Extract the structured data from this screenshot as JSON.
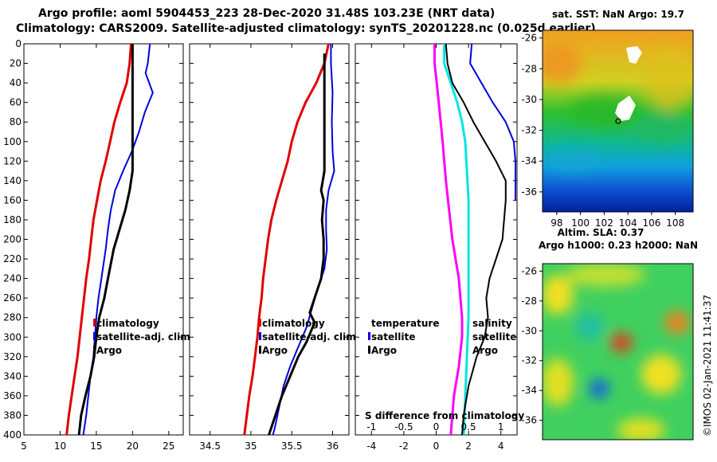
{
  "header": {
    "line1": "Argo profile: aoml 5904453_223 28-Dec-2020 31.48S 103.23E (NRT data)",
    "line2": "Climatology: CARS2009. Satellite-adjusted climatology: synTS_20201228.nc (0.025d earlier)"
  },
  "colors": {
    "climatology": "#e00000",
    "satellite": "#0000dd",
    "argo": "#000000",
    "temperature": "#ff00ff",
    "salinity": "#00e5e5"
  },
  "depth_ticks": [
    0,
    20,
    40,
    60,
    80,
    100,
    120,
    140,
    160,
    180,
    200,
    220,
    240,
    260,
    280,
    300,
    320,
    340,
    360,
    380,
    400
  ],
  "chart_data": [
    {
      "type": "line",
      "panel": "temperature",
      "xlim": [
        5,
        27
      ],
      "ylim": [
        400,
        0
      ],
      "xticks": [
        5,
        10,
        15,
        20,
        25
      ],
      "yaxis_label_visible": true,
      "legend": [
        "climatology",
        "satellite-adj. clim.",
        "Argo"
      ],
      "series": [
        {
          "name": "climatology",
          "color": "#e00000",
          "width": 3,
          "points": [
            [
              19.8,
              0
            ],
            [
              19.6,
              20
            ],
            [
              19.2,
              40
            ],
            [
              18.3,
              60
            ],
            [
              17.5,
              80
            ],
            [
              16.9,
              100
            ],
            [
              16.3,
              120
            ],
            [
              15.6,
              140
            ],
            [
              15.1,
              160
            ],
            [
              14.6,
              180
            ],
            [
              14.3,
              200
            ],
            [
              14.0,
              220
            ],
            [
              13.6,
              240
            ],
            [
              13.3,
              260
            ],
            [
              13.0,
              280
            ],
            [
              12.7,
              300
            ],
            [
              12.4,
              320
            ],
            [
              12.0,
              340
            ],
            [
              11.6,
              360
            ],
            [
              11.2,
              380
            ],
            [
              10.9,
              400
            ]
          ]
        },
        {
          "name": "satellite-adj. clim.",
          "color": "#0000dd",
          "width": 2,
          "points": [
            [
              22.4,
              0
            ],
            [
              22.1,
              20
            ],
            [
              21.8,
              30
            ],
            [
              22.8,
              50
            ],
            [
              21.7,
              70
            ],
            [
              20.9,
              90
            ],
            [
              19.9,
              110
            ],
            [
              18.7,
              130
            ],
            [
              17.6,
              150
            ],
            [
              17.0,
              170
            ],
            [
              16.6,
              190
            ],
            [
              16.3,
              210
            ],
            [
              15.7,
              240
            ],
            [
              15.3,
              260
            ],
            [
              15.0,
              280
            ],
            [
              14.8,
              300
            ],
            [
              14.6,
              320
            ],
            [
              14.2,
              340
            ],
            [
              13.9,
              360
            ],
            [
              13.6,
              380
            ],
            [
              13.2,
              400
            ]
          ]
        },
        {
          "name": "Argo",
          "color": "#000000",
          "width": 3,
          "points": [
            [
              20.0,
              0
            ],
            [
              20.0,
              10
            ],
            [
              20.0,
              130
            ],
            [
              19.6,
              150
            ],
            [
              19.0,
              170
            ],
            [
              18.2,
              190
            ],
            [
              17.4,
              210
            ],
            [
              16.6,
              240
            ],
            [
              16.1,
              260
            ],
            [
              15.4,
              280
            ],
            [
              15.0,
              300
            ],
            [
              14.7,
              320
            ],
            [
              14.2,
              340
            ],
            [
              13.5,
              360
            ],
            [
              12.9,
              380
            ],
            [
              12.6,
              400
            ]
          ]
        }
      ]
    },
    {
      "type": "line",
      "panel": "salinity",
      "xlim": [
        34.25,
        36.2
      ],
      "ylim": [
        400,
        0
      ],
      "xticks": [
        "34.5",
        "35",
        "35.5",
        "36"
      ],
      "legend": [
        "climatology",
        "satellite-adj. clim.",
        "Argo"
      ],
      "series": [
        {
          "name": "climatology",
          "color": "#e00000",
          "width": 3,
          "points": [
            [
              35.95,
              0
            ],
            [
              35.9,
              20
            ],
            [
              35.8,
              40
            ],
            [
              35.67,
              60
            ],
            [
              35.57,
              80
            ],
            [
              35.5,
              100
            ],
            [
              35.45,
              120
            ],
            [
              35.38,
              140
            ],
            [
              35.31,
              160
            ],
            [
              35.25,
              180
            ],
            [
              35.21,
              200
            ],
            [
              35.18,
              220
            ],
            [
              35.15,
              240
            ],
            [
              35.13,
              260
            ],
            [
              35.1,
              280
            ],
            [
              35.08,
              300
            ],
            [
              35.05,
              320
            ],
            [
              35.02,
              340
            ],
            [
              34.98,
              360
            ],
            [
              34.95,
              380
            ],
            [
              34.92,
              400
            ]
          ]
        },
        {
          "name": "satellite-adj. clim.",
          "color": "#0000dd",
          "width": 2,
          "points": [
            [
              35.98,
              0
            ],
            [
              35.98,
              20
            ],
            [
              36.0,
              50
            ],
            [
              35.99,
              80
            ],
            [
              36.0,
              110
            ],
            [
              36.02,
              130
            ],
            [
              35.95,
              150
            ],
            [
              35.92,
              170
            ],
            [
              35.92,
              190
            ],
            [
              35.93,
              210
            ],
            [
              35.9,
              230
            ],
            [
              35.82,
              250
            ],
            [
              35.75,
              270
            ],
            [
              35.68,
              290
            ],
            [
              35.58,
              310
            ],
            [
              35.48,
              330
            ],
            [
              35.4,
              350
            ],
            [
              35.35,
              370
            ],
            [
              35.3,
              390
            ],
            [
              35.27,
              400
            ]
          ]
        },
        {
          "name": "Argo",
          "color": "#000000",
          "width": 3,
          "points": [
            [
              35.9,
              10
            ],
            [
              35.9,
              130
            ],
            [
              35.86,
              150
            ],
            [
              35.89,
              160
            ],
            [
              35.87,
              180
            ],
            [
              35.89,
              200
            ],
            [
              35.89,
              220
            ],
            [
              35.86,
              240
            ],
            [
              35.78,
              260
            ],
            [
              35.72,
              275
            ],
            [
              35.78,
              285
            ],
            [
              35.68,
              305
            ],
            [
              35.58,
              320
            ],
            [
              35.48,
              340
            ],
            [
              35.38,
              360
            ],
            [
              35.3,
              380
            ],
            [
              35.22,
              400
            ]
          ]
        }
      ]
    },
    {
      "type": "line",
      "panel": "difference",
      "xlim": [
        -5,
        5
      ],
      "ylim": [
        400,
        0
      ],
      "xticks": [
        "-4",
        "-2",
        "0",
        "2",
        "4"
      ],
      "note": "S difference from climatology",
      "sub_ticks": [
        "-1",
        "-0.5",
        "0",
        "0.5",
        "1"
      ],
      "legend_left": [
        "temperature",
        "satellite",
        "Argo"
      ],
      "legend_right": [
        "salinity",
        "satellite",
        "Argo"
      ],
      "series": [
        {
          "name": "temperature satellite",
          "color": "#ff00ff",
          "width": 3,
          "points": [
            [
              -0.1,
              0
            ],
            [
              -0.1,
              20
            ],
            [
              0.1,
              50
            ],
            [
              0.4,
              100
            ],
            [
              0.6,
              140
            ],
            [
              0.8,
              170
            ],
            [
              1.0,
              200
            ],
            [
              1.4,
              240
            ],
            [
              1.6,
              280
            ],
            [
              1.6,
              300
            ],
            [
              1.4,
              330
            ],
            [
              1.1,
              360
            ],
            [
              0.9,
              400
            ]
          ]
        },
        {
          "name": "salinity satellite",
          "color": "#00e5e5",
          "width": 3,
          "points": [
            [
              0.5,
              0
            ],
            [
              0.5,
              20
            ],
            [
              0.9,
              40
            ],
            [
              1.3,
              60
            ],
            [
              1.6,
              80
            ],
            [
              1.8,
              100
            ],
            [
              1.9,
              130
            ],
            [
              2.0,
              160
            ],
            [
              2.0,
              200
            ],
            [
              2.0,
              240
            ],
            [
              2.0,
              280
            ],
            [
              1.9,
              320
            ],
            [
              1.8,
              360
            ],
            [
              1.7,
              400
            ]
          ]
        },
        {
          "name": "Argo",
          "color": "#000000",
          "width": 2,
          "points": [
            [
              0.6,
              0
            ],
            [
              0.7,
              20
            ],
            [
              1.0,
              40
            ],
            [
              1.7,
              60
            ],
            [
              2.3,
              80
            ],
            [
              3.0,
              100
            ],
            [
              3.7,
              120
            ],
            [
              4.3,
              140
            ],
            [
              4.3,
              160
            ],
            [
              4.1,
              200
            ],
            [
              3.7,
              220
            ],
            [
              3.3,
              240
            ],
            [
              3.1,
              260
            ],
            [
              3.2,
              280
            ],
            [
              3.0,
              300
            ],
            [
              2.5,
              320
            ],
            [
              2.0,
              350
            ],
            [
              1.7,
              380
            ],
            [
              1.6,
              400
            ]
          ]
        },
        {
          "name": "satellite",
          "color": "#0000dd",
          "width": 2,
          "points": [
            [
              2.2,
              0
            ],
            [
              2.1,
              20
            ],
            [
              2.8,
              40
            ],
            [
              3.5,
              60
            ],
            [
              4.3,
              80
            ],
            [
              4.8,
              100
            ],
            [
              4.9,
              120
            ],
            [
              4.9,
              140
            ],
            [
              4.9,
              160
            ]
          ]
        }
      ]
    }
  ],
  "sst_map": {
    "title": "sat. SST: NaN Argo: 19.7",
    "lon_ticks": [
      "98",
      "100",
      "102",
      "104",
      "106",
      "108"
    ],
    "lat_ticks": [
      "-26",
      "-28",
      "-30",
      "-32",
      "-34",
      "-36"
    ],
    "marker": "o"
  },
  "sla_map": {
    "title1": "Altim. SLA: 0.37",
    "title2": "Argo h1000: 0.23 h2000: NaN",
    "lat_ticks": [
      "-26",
      "-28",
      "-30",
      "-32",
      "-34",
      "-36"
    ]
  },
  "credit": "©IMOS 02-Jan-2021 11:41:37"
}
